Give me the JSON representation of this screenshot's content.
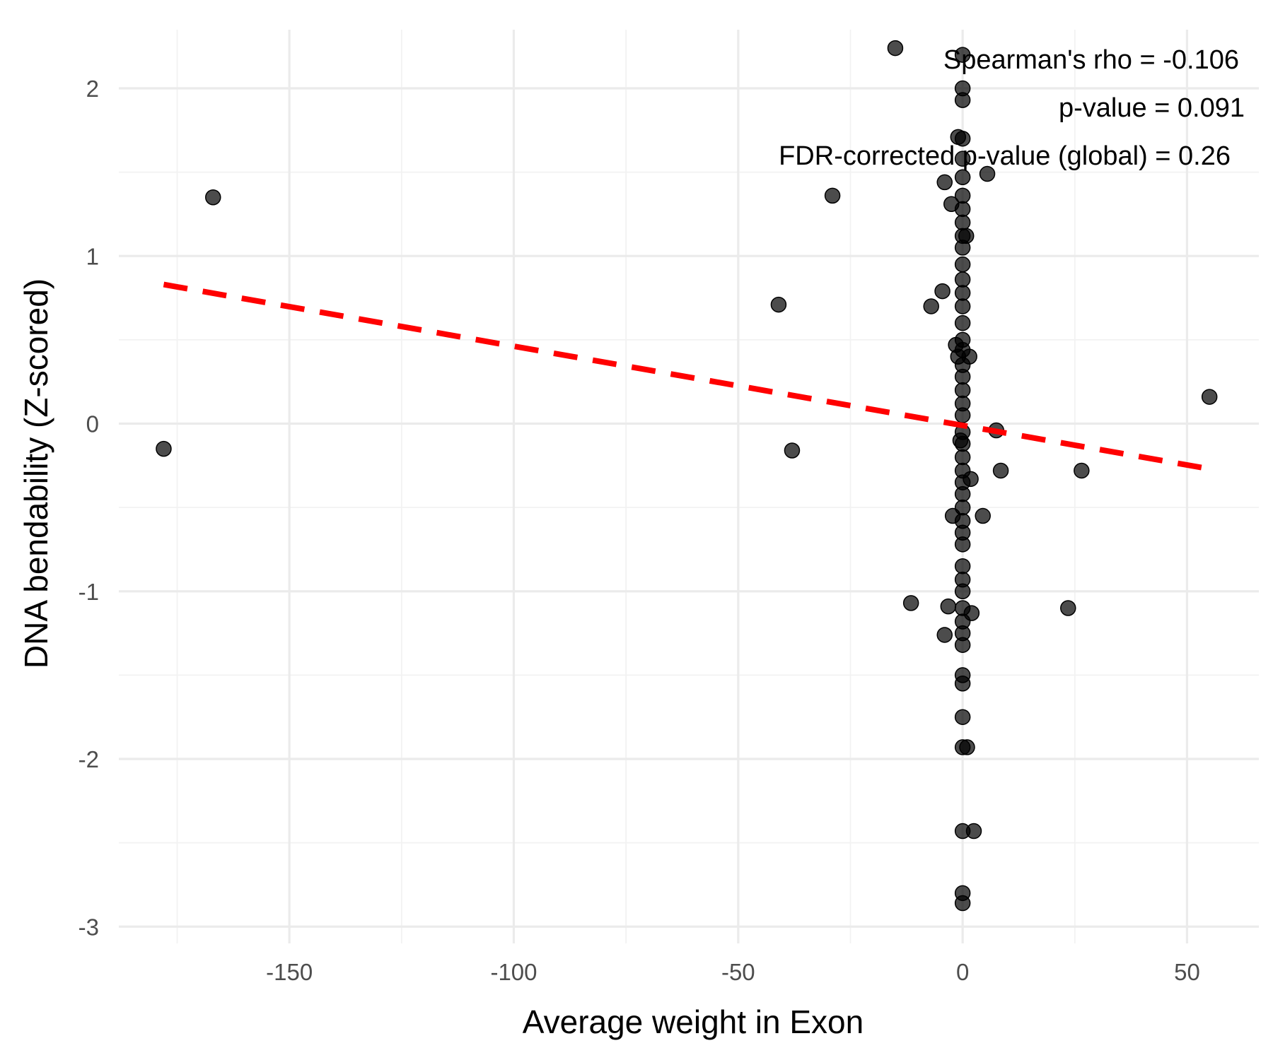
{
  "chart_data": {
    "type": "scatter",
    "xlabel": "Average weight in Exon",
    "ylabel": "DNA bendability (Z-scored)",
    "xlim": [
      -188,
      66
    ],
    "ylim": [
      -3.1,
      2.35
    ],
    "x_ticks": [
      -150,
      -100,
      -50,
      0,
      50
    ],
    "y_ticks": [
      -3,
      -2,
      -1,
      0,
      1,
      2
    ],
    "grid": true,
    "annotations": [
      "Spearman's rho = -0.106",
      "p-value = 0.091",
      "FDR-corrected p-value (global) = 0.26"
    ],
    "trend_line": {
      "x": [
        -178,
        55
      ],
      "y": [
        0.83,
        -0.27
      ],
      "style": "dashed",
      "color": "#ff0000"
    },
    "point_color": "#000000",
    "points": [
      {
        "x": -178,
        "y": -0.15
      },
      {
        "x": -167,
        "y": 1.35
      },
      {
        "x": -41,
        "y": 0.71
      },
      {
        "x": -38,
        "y": -0.16
      },
      {
        "x": -29,
        "y": 1.36
      },
      {
        "x": -15,
        "y": 2.24
      },
      {
        "x": -11.5,
        "y": -1.07
      },
      {
        "x": -7,
        "y": 0.7
      },
      {
        "x": -4.5,
        "y": 0.79
      },
      {
        "x": -4,
        "y": 1.44
      },
      {
        "x": -4,
        "y": -1.26
      },
      {
        "x": -3.2,
        "y": -1.09
      },
      {
        "x": -2.5,
        "y": 1.31
      },
      {
        "x": -2.2,
        "y": -0.55
      },
      {
        "x": -1.5,
        "y": 0.47
      },
      {
        "x": -1,
        "y": 0.4
      },
      {
        "x": -1,
        "y": 1.71
      },
      {
        "x": -0.5,
        "y": -0.1
      },
      {
        "x": 0.8,
        "y": 1.12
      },
      {
        "x": 1.5,
        "y": 0.4
      },
      {
        "x": 1.8,
        "y": -0.33
      },
      {
        "x": 2,
        "y": -1.13
      },
      {
        "x": 1,
        "y": -1.93
      },
      {
        "x": 2.5,
        "y": -2.43
      },
      {
        "x": 4.5,
        "y": -0.55
      },
      {
        "x": 5.5,
        "y": 1.49
      },
      {
        "x": 7.5,
        "y": -0.04
      },
      {
        "x": 8.5,
        "y": -0.28
      },
      {
        "x": 23.5,
        "y": -1.1
      },
      {
        "x": 26.5,
        "y": -0.28
      },
      {
        "x": 55,
        "y": 0.16
      },
      {
        "x": 0,
        "y": 2.2
      },
      {
        "x": 0,
        "y": 2.0
      },
      {
        "x": 0,
        "y": 1.93
      },
      {
        "x": 0,
        "y": 1.7
      },
      {
        "x": 0,
        "y": 1.58
      },
      {
        "x": 0,
        "y": 1.47
      },
      {
        "x": 0,
        "y": 1.36
      },
      {
        "x": 0,
        "y": 1.28
      },
      {
        "x": 0,
        "y": 1.2
      },
      {
        "x": 0,
        "y": 1.12
      },
      {
        "x": 0,
        "y": 1.05
      },
      {
        "x": 0,
        "y": 0.95
      },
      {
        "x": 0,
        "y": 0.86
      },
      {
        "x": 0,
        "y": 0.78
      },
      {
        "x": 0,
        "y": 0.7
      },
      {
        "x": 0,
        "y": 0.6
      },
      {
        "x": 0,
        "y": 0.5
      },
      {
        "x": 0,
        "y": 0.44
      },
      {
        "x": 0,
        "y": 0.35
      },
      {
        "x": 0,
        "y": 0.28
      },
      {
        "x": 0,
        "y": 0.2
      },
      {
        "x": 0,
        "y": 0.12
      },
      {
        "x": 0,
        "y": 0.05
      },
      {
        "x": 0,
        "y": -0.05
      },
      {
        "x": 0,
        "y": -0.12
      },
      {
        "x": 0,
        "y": -0.2
      },
      {
        "x": 0,
        "y": -0.28
      },
      {
        "x": 0,
        "y": -0.35
      },
      {
        "x": 0,
        "y": -0.42
      },
      {
        "x": 0,
        "y": -0.5
      },
      {
        "x": 0,
        "y": -0.58
      },
      {
        "x": 0,
        "y": -0.65
      },
      {
        "x": 0,
        "y": -0.72
      },
      {
        "x": 0,
        "y": -0.85
      },
      {
        "x": 0,
        "y": -0.93
      },
      {
        "x": 0,
        "y": -1.0
      },
      {
        "x": 0,
        "y": -1.1
      },
      {
        "x": 0,
        "y": -1.18
      },
      {
        "x": 0,
        "y": -1.25
      },
      {
        "x": 0,
        "y": -1.32
      },
      {
        "x": 0,
        "y": -1.5
      },
      {
        "x": 0,
        "y": -1.55
      },
      {
        "x": 0,
        "y": -1.75
      },
      {
        "x": 0,
        "y": -1.93
      },
      {
        "x": 0,
        "y": -2.43
      },
      {
        "x": 0,
        "y": -2.8
      },
      {
        "x": 0,
        "y": -2.86
      }
    ]
  }
}
